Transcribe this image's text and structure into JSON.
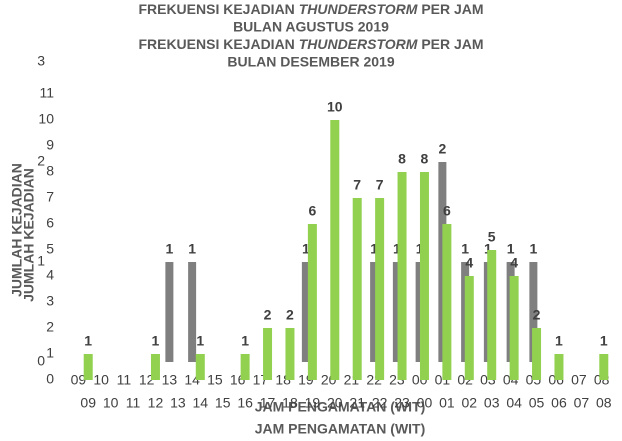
{
  "chart_data": [
    {
      "type": "bar",
      "title": [
        "FREKUENSI KEJADIAN",
        "THUNDERSTORM",
        "PER JAM"
      ],
      "subtitle": "BULAN AGUSTUS 2019",
      "x_label": "JAM PENGAMATAN (WIT)",
      "y_label": "JUMLAH KEJADIAN",
      "categories": [
        "09",
        "10",
        "11",
        "12",
        "13",
        "14",
        "15",
        "16",
        "17",
        "18",
        "19",
        "20",
        "21",
        "22",
        "23",
        "00",
        "01",
        "02",
        "03",
        "04",
        "05",
        "06",
        "07",
        "08"
      ],
      "values": [
        0,
        0,
        0,
        0,
        1,
        1,
        0,
        0,
        0,
        0,
        1,
        0,
        0,
        1,
        1,
        1,
        2,
        1,
        1,
        1,
        1,
        0,
        0,
        0
      ],
      "color": "#7f7f7f",
      "ylim": [
        0,
        3
      ],
      "yticks": [
        0,
        1,
        2,
        3
      ]
    },
    {
      "type": "bar",
      "title": [
        "FREKUENSI KEJADIAN",
        "THUNDERSTORM",
        "PER JAM"
      ],
      "subtitle": "BULAN DESEMBER 2019",
      "x_label": "JAM PENGAMATAN (WIT)",
      "y_label": "JUMLAH KEJADIAN",
      "categories": [
        "09",
        "10",
        "11",
        "12",
        "13",
        "14",
        "15",
        "16",
        "17",
        "18",
        "19",
        "20",
        "21",
        "22",
        "23",
        "00",
        "01",
        "02",
        "03",
        "04",
        "05",
        "06",
        "07",
        "08"
      ],
      "values": [
        1,
        0,
        0,
        1,
        0,
        1,
        0,
        1,
        2,
        2,
        6,
        10,
        7,
        7,
        8,
        8,
        6,
        4,
        5,
        4,
        2,
        1,
        0,
        1
      ],
      "color": "#92d050",
      "ylim": [
        0,
        11
      ],
      "yticks": [
        0,
        1,
        2,
        3,
        4,
        5,
        6,
        7,
        8,
        9,
        10,
        11
      ]
    }
  ]
}
